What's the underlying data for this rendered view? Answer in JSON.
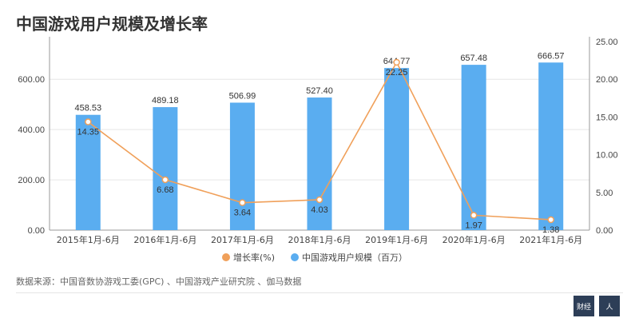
{
  "title": "中国游戏用户规模及增长率",
  "source": "数据来源：中国音数协游戏工委(GPC) 、中国游戏产业研究院 、伽马数据",
  "colors": {
    "bar": "#5aadf0",
    "line": "#f0a05a",
    "axis": "#999999",
    "grid": "#e6e6e6",
    "text": "#333333"
  },
  "logos": [
    "财经",
    "人"
  ],
  "chart_data": {
    "type": "bar",
    "categories": [
      "2015年1月-6月",
      "2016年1月-6月",
      "2017年1月-6月",
      "2018年1月-6月",
      "2019年1月-6月",
      "2020年1月-6月",
      "2021年1月-6月"
    ],
    "series": [
      {
        "name": "中国游戏用户规模（百万）",
        "type": "bar",
        "axis": "left",
        "values": [
          458.53,
          489.18,
          506.99,
          527.4,
          644.77,
          657.48,
          666.57
        ],
        "labels": [
          "458.53",
          "489.18",
          "506.99",
          "527.40",
          "644.77",
          "657.48",
          "666.57"
        ]
      },
      {
        "name": "增长率(%)",
        "type": "line",
        "axis": "right",
        "values": [
          14.35,
          6.68,
          3.64,
          4.03,
          22.25,
          1.97,
          1.38
        ],
        "labels": [
          "14.35",
          "6.68",
          "3.64",
          "4.03",
          "22.25",
          "1.97",
          "1.38"
        ]
      }
    ],
    "y_left": {
      "ylim": [
        0,
        750
      ],
      "ticks": [
        "0.00",
        "200.00",
        "400.00",
        "600.00"
      ],
      "tick_values": [
        0,
        200,
        400,
        600
      ]
    },
    "y_right": {
      "ylim": [
        0,
        25
      ],
      "ticks": [
        "0.00",
        "5.00",
        "10.00",
        "15.00",
        "20.00",
        "25.00"
      ],
      "tick_values": [
        0,
        5,
        10,
        15,
        20,
        25
      ]
    },
    "legend_position": "bottom"
  }
}
